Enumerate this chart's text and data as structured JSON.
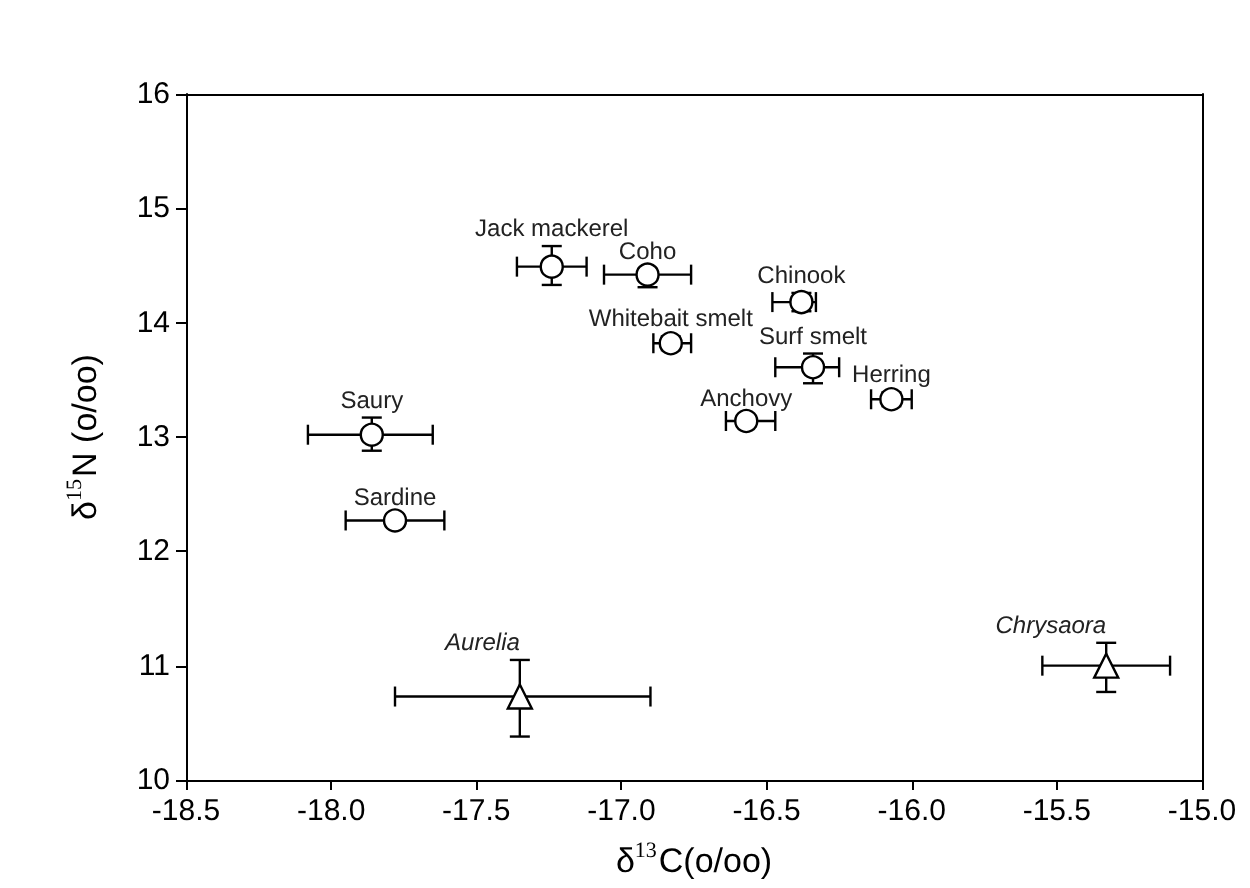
{
  "chart_data": {
    "type": "scatter",
    "xlabel": "δ$^{13}$C(o/oo)",
    "ylabel": "δ$^{15}$N (o/oo)",
    "xlim": [
      -18.5,
      -15.0
    ],
    "xticks": [
      {
        "value": -18.5,
        "label": "-18.5"
      },
      {
        "value": -18,
        "label": "-18.0"
      },
      {
        "value": -17.5,
        "label": "-17.5"
      },
      {
        "value": -17,
        "label": "-17.0"
      },
      {
        "value": -16.5,
        "label": "-16.5"
      },
      {
        "value": -16,
        "label": "-16.0"
      },
      {
        "value": -15.5,
        "label": "-15.5"
      },
      {
        "value": -15,
        "label": "-15.0"
      }
    ],
    "ylim": [
      10,
      16
    ],
    "yticks": [
      10,
      11,
      12,
      13,
      14,
      15,
      16
    ],
    "series": [
      {
        "color": "#000000",
        "marker": "circle",
        "x": [
          -17.24,
          -16.91,
          -16.38,
          -16.83,
          -16.34,
          -16.07,
          -16.57,
          -17.86,
          -17.78
        ],
        "values": [
          14.49,
          14.42,
          14.18,
          13.82,
          13.61,
          13.33,
          13.14,
          13.02,
          12.27
        ],
        "xerrors": [
          [
            -17.36,
            -17.12
          ],
          [
            -17.06,
            -16.76
          ],
          [
            -16.48,
            -16.33
          ],
          [
            -16.89,
            -16.76
          ],
          [
            -16.47,
            -16.25
          ],
          [
            -16.14,
            -16.0
          ],
          [
            -16.64,
            -16.47
          ],
          [
            -18.08,
            -17.65
          ],
          [
            -17.95,
            -17.61
          ]
        ],
        "errors": [
          [
            14.33,
            14.67
          ],
          [
            14.31,
            14.47
          ],
          [
            14.1,
            14.26
          ],
          [
            13.76,
            13.88
          ],
          [
            13.47,
            13.73
          ],
          [
            13.27,
            13.39
          ],
          [
            13.09,
            13.18
          ],
          [
            12.88,
            13.17
          ],
          [
            12.22,
            12.32
          ]
        ]
      },
      {
        "color": "#000000",
        "marker": "triangle",
        "x": [
          -17.35,
          -15.33
        ],
        "values": [
          10.73,
          11.0
        ],
        "xerrors": [
          [
            -17.78,
            -16.9
          ],
          [
            -15.55,
            -15.11
          ]
        ],
        "errors": [
          [
            10.38,
            11.05
          ],
          [
            10.77,
            11.2
          ]
        ]
      }
    ],
    "annotations": [
      {
        "text": "Jack mackerel",
        "x": -17.24,
        "y": 14.49
      },
      {
        "text": "Coho",
        "x": -16.91,
        "y": 14.42
      },
      {
        "text": "Chinook",
        "x": -16.38,
        "y": 14.18
      },
      {
        "text": "Whitebait smelt",
        "x": -16.83,
        "y": 13.82
      },
      {
        "text": "Surf smelt",
        "x": -16.34,
        "y": 13.61
      },
      {
        "text": "Herring",
        "x": -16.07,
        "y": 13.33
      },
      {
        "text": "Anchovy",
        "x": -16.57,
        "y": 13.14
      },
      {
        "text": "Saury",
        "x": -17.86,
        "y": 13.02
      },
      {
        "text": "Sardine",
        "x": -17.78,
        "y": 12.27
      },
      {
        "text": "Aurelia",
        "x": -17.35,
        "y": 10.73
      },
      {
        "text": "Chrysaora",
        "x": -15.33,
        "y": 11.0
      }
    ]
  }
}
